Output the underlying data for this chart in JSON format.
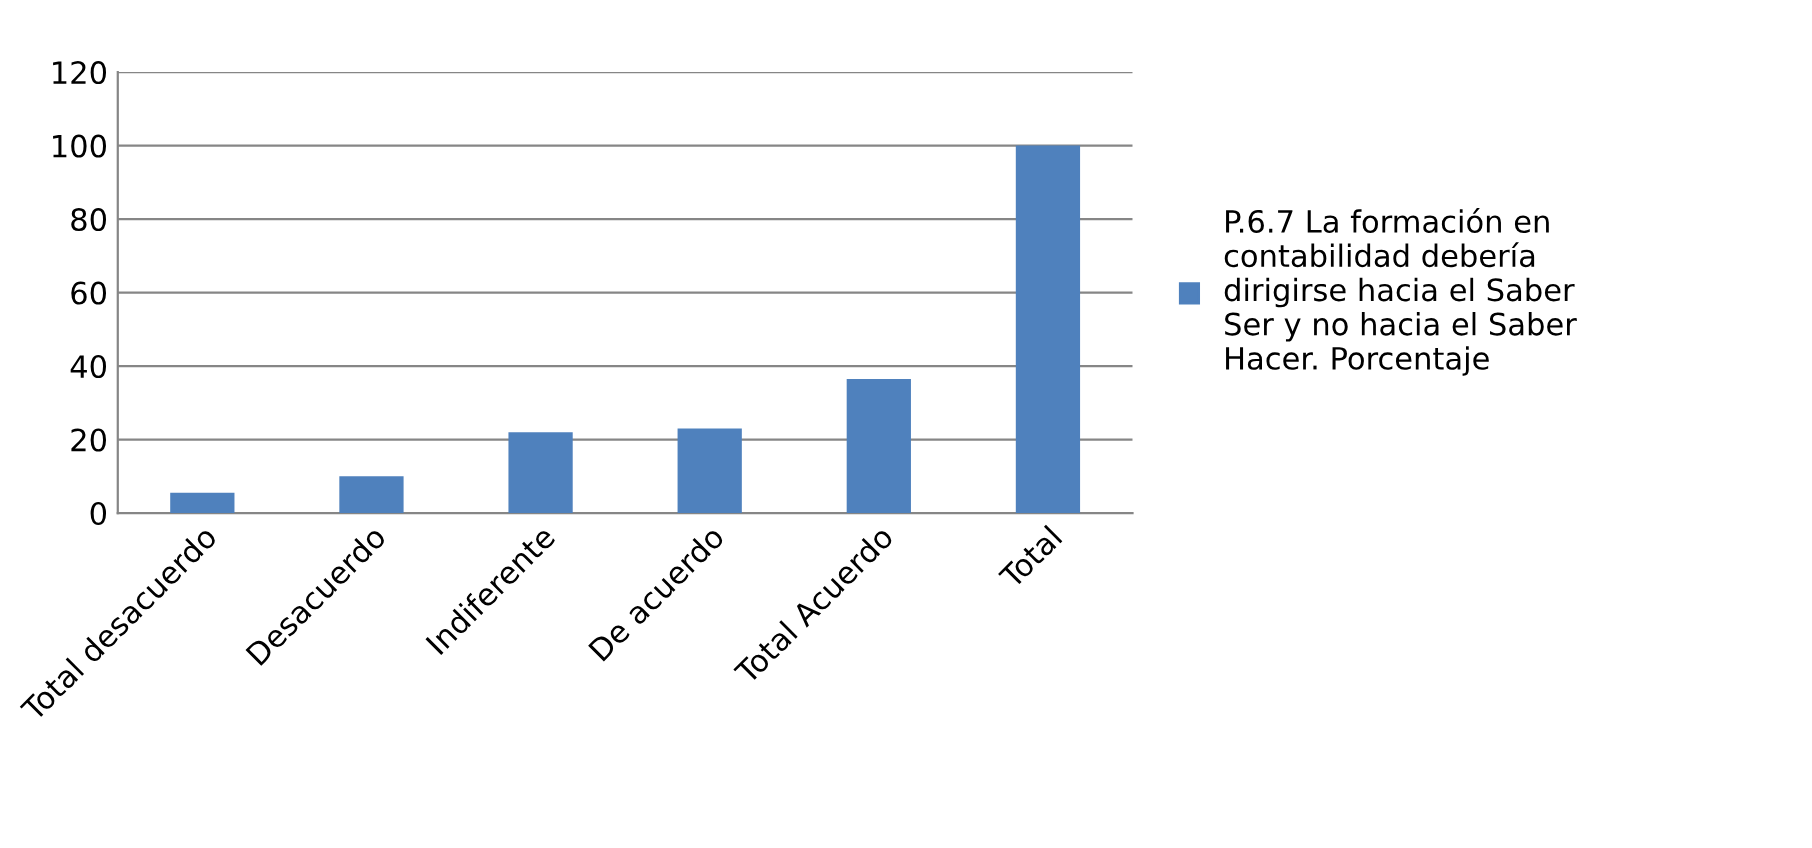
{
  "chart_data": {
    "type": "bar",
    "categories": [
      "Total desacuerdo",
      "Desacuerdo",
      "Indiferente",
      "De acuerdo",
      "Total Acuerdo",
      "Total"
    ],
    "series": [
      {
        "name": "P.6.7 La formación en contabilidad debería dirigirse hacia el Saber Ser y no hacia el Saber Hacer. Porcentaje",
        "color": "#4f81bd",
        "values": [
          5.5,
          10,
          22,
          23,
          36.5,
          100
        ]
      }
    ],
    "ylim": [
      0,
      120
    ],
    "yticks": [
      0,
      20,
      40,
      60,
      80,
      100,
      120
    ],
    "grid": "y",
    "legend": "right"
  }
}
